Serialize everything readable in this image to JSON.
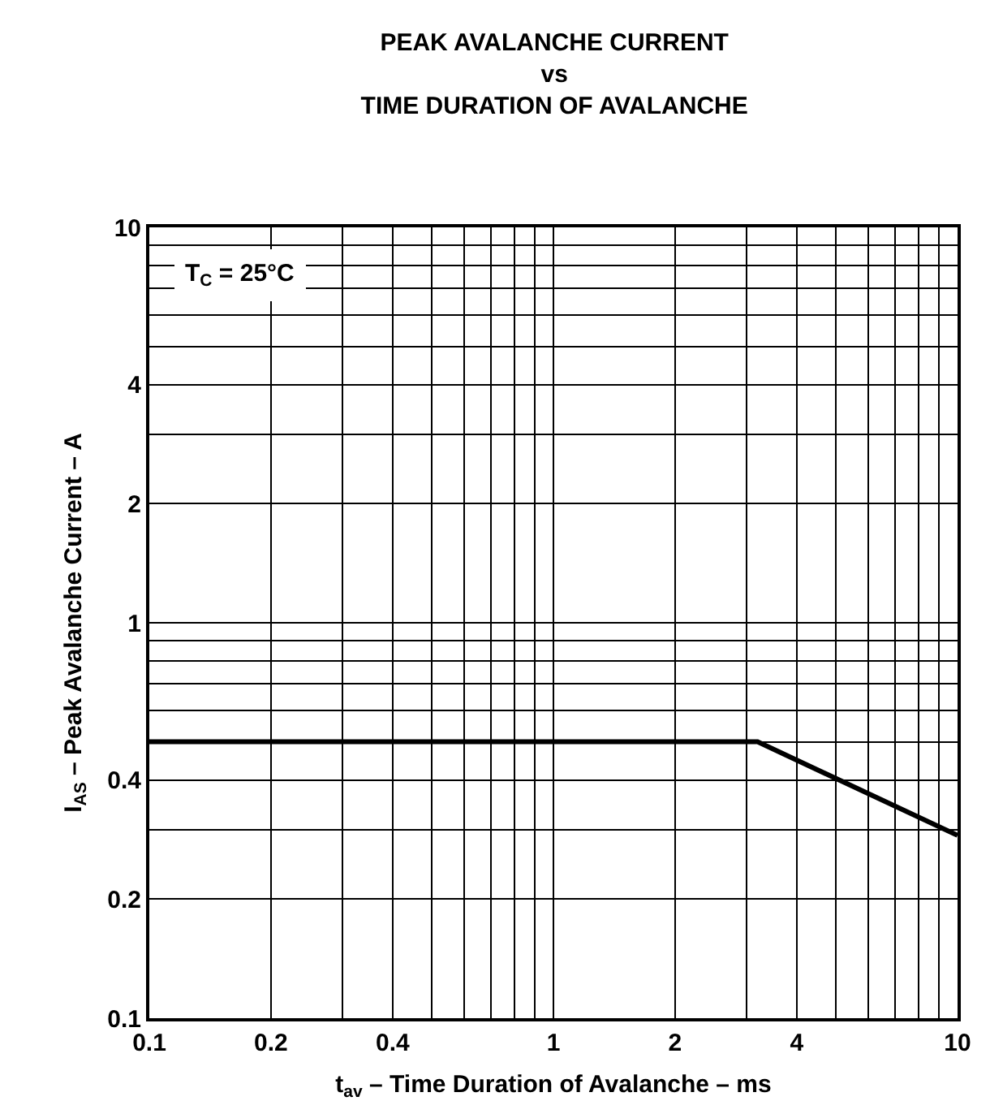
{
  "chart_data": {
    "type": "line",
    "title": "PEAK AVALANCHE CURRENT\nvs\nTIME DURATION OF AVALANCHE",
    "xlabel": "t$_{av}$ – Time Duration of Avalanche – ms",
    "ylabel": "I$_{AS}$ – Peak Avalanche Current – A",
    "log": "xy",
    "xlim": [
      0.1,
      10
    ],
    "ylim": [
      0.1,
      10
    ],
    "xticks": [
      0.1,
      0.2,
      0.4,
      1,
      2,
      4,
      10
    ],
    "yticks": [
      0.1,
      0.2,
      0.4,
      1,
      2,
      4,
      10
    ],
    "grid": true,
    "marker": "none",
    "line_style": "solid",
    "annotations": [
      "T$_{C}$ = 25°C"
    ],
    "series": [
      {
        "color": "#000000",
        "x": [
          0.1,
          3.2,
          10
        ],
        "values": [
          0.5,
          0.5,
          0.29
        ]
      }
    ]
  }
}
